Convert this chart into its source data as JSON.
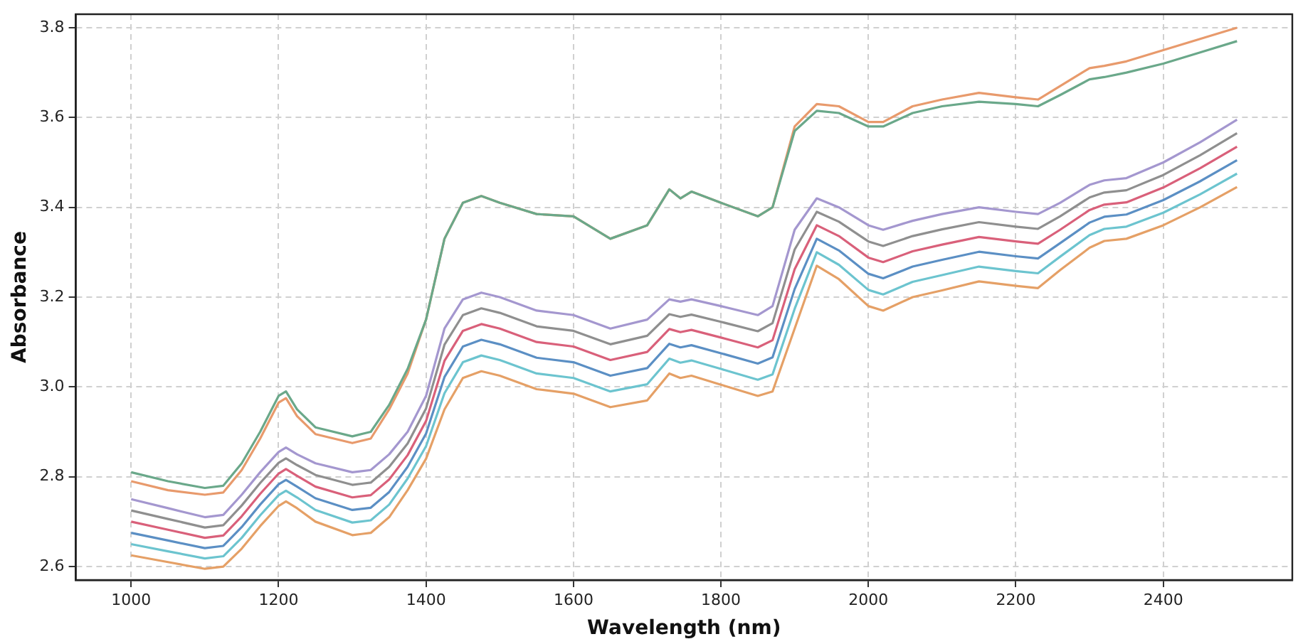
{
  "chart_data": {
    "type": "line",
    "xlabel": "Wavelength (nm)",
    "ylabel": "Absorbance",
    "x": [
      1000,
      1050,
      1100,
      1125,
      1150,
      1175,
      1200,
      1210,
      1225,
      1250,
      1300,
      1325,
      1350,
      1375,
      1400,
      1425,
      1450,
      1475,
      1500,
      1550,
      1600,
      1650,
      1700,
      1730,
      1745,
      1760,
      1800,
      1850,
      1870,
      1900,
      1930,
      1960,
      2000,
      2020,
      2060,
      2100,
      2150,
      2200,
      2230,
      2260,
      2300,
      2320,
      2350,
      2400,
      2450,
      2500
    ],
    "series": [
      {
        "color": "#6aa88a",
        "values": [
          2.81,
          2.79,
          2.775,
          2.78,
          2.83,
          2.9,
          2.98,
          2.99,
          2.95,
          2.91,
          2.89,
          2.9,
          2.96,
          3.04,
          3.15,
          3.33,
          3.41,
          3.425,
          3.41,
          3.385,
          3.38,
          3.33,
          3.36,
          3.44,
          3.42,
          3.435,
          3.41,
          3.38,
          3.4,
          3.57,
          3.615,
          3.61,
          3.58,
          3.58,
          3.61,
          3.625,
          3.635,
          3.63,
          3.625,
          3.65,
          3.685,
          3.69,
          3.7,
          3.72,
          3.745,
          3.77
        ]
      },
      {
        "color": "#e89a6c",
        "values": [
          2.79,
          2.77,
          2.76,
          2.765,
          2.815,
          2.885,
          2.965,
          2.975,
          2.935,
          2.895,
          2.875,
          2.885,
          2.95,
          3.03,
          3.15,
          3.33,
          3.41,
          3.425,
          3.41,
          3.385,
          3.38,
          3.33,
          3.36,
          3.44,
          3.42,
          3.435,
          3.41,
          3.38,
          3.4,
          3.58,
          3.63,
          3.625,
          3.59,
          3.59,
          3.625,
          3.64,
          3.655,
          3.645,
          3.64,
          3.67,
          3.71,
          3.715,
          3.725,
          3.75,
          3.775,
          3.8
        ]
      },
      {
        "color": "#a497cf",
        "values": [
          2.75,
          2.73,
          2.71,
          2.715,
          2.76,
          2.81,
          2.855,
          2.865,
          2.85,
          2.83,
          2.81,
          2.815,
          2.85,
          2.9,
          2.98,
          3.13,
          3.195,
          3.21,
          3.2,
          3.17,
          3.16,
          3.13,
          3.15,
          3.195,
          3.19,
          3.195,
          3.18,
          3.16,
          3.18,
          3.35,
          3.42,
          3.4,
          3.36,
          3.35,
          3.37,
          3.385,
          3.4,
          3.39,
          3.385,
          3.41,
          3.45,
          3.46,
          3.465,
          3.5,
          3.545,
          3.595
        ]
      },
      {
        "color": "#8f8f8f",
        "values": [
          2.725,
          2.706,
          2.687,
          2.692,
          2.736,
          2.786,
          2.831,
          2.841,
          2.826,
          2.804,
          2.782,
          2.787,
          2.822,
          2.874,
          2.952,
          3.094,
          3.16,
          3.175,
          3.165,
          3.135,
          3.125,
          3.095,
          3.114,
          3.162,
          3.156,
          3.161,
          3.145,
          3.124,
          3.142,
          3.306,
          3.39,
          3.368,
          3.324,
          3.314,
          3.336,
          3.351,
          3.367,
          3.357,
          3.352,
          3.38,
          3.422,
          3.433,
          3.438,
          3.472,
          3.516,
          3.565
        ]
      },
      {
        "color": "#d9607a",
        "values": [
          2.7,
          2.682,
          2.664,
          2.669,
          2.712,
          2.762,
          2.807,
          2.817,
          2.802,
          2.778,
          2.754,
          2.759,
          2.794,
          2.848,
          2.924,
          3.058,
          3.125,
          3.14,
          3.13,
          3.1,
          3.09,
          3.06,
          3.078,
          3.129,
          3.122,
          3.127,
          3.11,
          3.088,
          3.104,
          3.262,
          3.36,
          3.336,
          3.288,
          3.278,
          3.302,
          3.317,
          3.334,
          3.324,
          3.319,
          3.35,
          3.394,
          3.406,
          3.411,
          3.444,
          3.487,
          3.535
        ]
      },
      {
        "color": "#5b8fc4",
        "values": [
          2.675,
          2.658,
          2.641,
          2.646,
          2.688,
          2.738,
          2.783,
          2.793,
          2.778,
          2.752,
          2.726,
          2.731,
          2.766,
          2.822,
          2.896,
          3.022,
          3.09,
          3.105,
          3.095,
          3.065,
          3.055,
          3.025,
          3.042,
          3.096,
          3.088,
          3.093,
          3.075,
          3.052,
          3.066,
          3.218,
          3.33,
          3.304,
          3.252,
          3.242,
          3.268,
          3.283,
          3.301,
          3.291,
          3.286,
          3.32,
          3.366,
          3.379,
          3.384,
          3.416,
          3.458,
          3.505
        ]
      },
      {
        "color": "#6cc4cf",
        "values": [
          2.65,
          2.634,
          2.618,
          2.623,
          2.664,
          2.714,
          2.759,
          2.769,
          2.754,
          2.726,
          2.698,
          2.703,
          2.738,
          2.796,
          2.868,
          2.986,
          3.055,
          3.07,
          3.06,
          3.03,
          3.02,
          2.99,
          3.006,
          3.063,
          3.054,
          3.059,
          3.04,
          3.016,
          3.028,
          3.174,
          3.3,
          3.272,
          3.216,
          3.206,
          3.234,
          3.249,
          3.268,
          3.258,
          3.253,
          3.29,
          3.338,
          3.352,
          3.357,
          3.388,
          3.429,
          3.475
        ]
      },
      {
        "color": "#e5a066",
        "values": [
          2.625,
          2.61,
          2.595,
          2.6,
          2.64,
          2.69,
          2.735,
          2.745,
          2.73,
          2.7,
          2.67,
          2.675,
          2.71,
          2.77,
          2.84,
          2.95,
          3.02,
          3.035,
          3.025,
          2.995,
          2.985,
          2.955,
          2.97,
          3.03,
          3.02,
          3.025,
          3.005,
          2.98,
          2.99,
          3.13,
          3.27,
          3.24,
          3.18,
          3.17,
          3.2,
          3.215,
          3.235,
          3.225,
          3.22,
          3.26,
          3.31,
          3.325,
          3.33,
          3.36,
          3.4,
          3.445
        ]
      }
    ],
    "xlim": [
      925,
      2575
    ],
    "xticks": [
      1000,
      1200,
      1400,
      1600,
      1800,
      2000,
      2200,
      2400
    ],
    "ylim": [
      2.57,
      3.83
    ],
    "yticks": [
      {
        "value": 2.6,
        "label": "2.6"
      },
      {
        "value": 2.8,
        "label": "2.8"
      },
      {
        "value": 3.0,
        "label": "3.0"
      },
      {
        "value": 3.2,
        "label": "3.2"
      },
      {
        "value": 3.4,
        "label": "3.4"
      },
      {
        "value": 3.6,
        "label": "3.6"
      },
      {
        "value": 3.8,
        "label": "3.8"
      }
    ],
    "grid": true,
    "legend": false,
    "marker": "none",
    "line_style": "solid"
  }
}
